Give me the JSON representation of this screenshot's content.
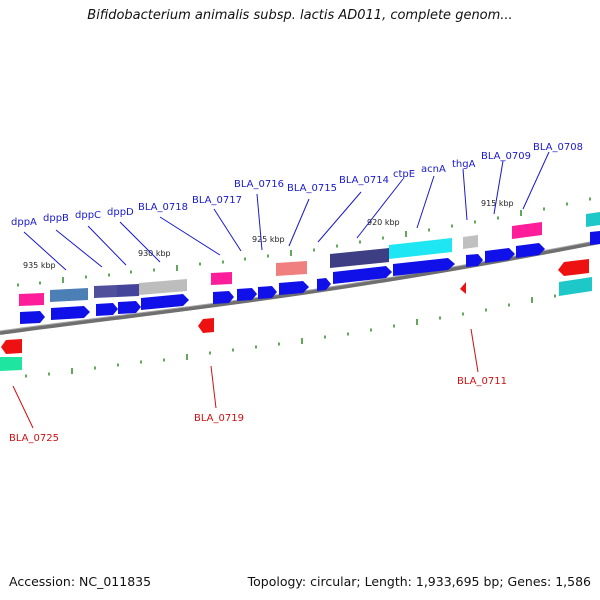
{
  "title": "Bifidobacterium animalis subsp. lactis AD011, complete genom...",
  "accession": "Accession: NC_011835",
  "summary": "Topology: circular; Length: 1,933,695 bp; Genes: 1,586",
  "colors": {
    "backbone": "#7a7a7a",
    "cds_forward": "#1010e8",
    "rna_reverse": "#ee1111",
    "tick": "#2e8b22",
    "label_top": "#1a1ac8",
    "label_bottom": "#cc1111"
  },
  "scale_labels": [
    "935 kbp",
    "930 kbp",
    "925 kbp",
    "920 kbp",
    "915 kbp"
  ],
  "genes_top": [
    "dppA",
    "dppB",
    "dppC",
    "dppD",
    "BLA_0718",
    "BLA_0717",
    "BLA_0716",
    "BLA_0715",
    "BLA_0714",
    "ctpE",
    "acnA",
    "thgA",
    "BLA_0709",
    "BLA_0708"
  ],
  "genes_bottom": [
    "BLA_0725",
    "BLA_0719",
    "BLA_0711"
  ]
}
